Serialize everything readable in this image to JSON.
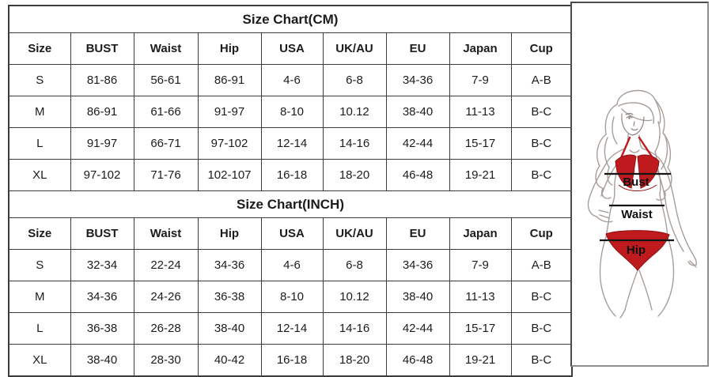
{
  "tables": [
    {
      "title": "Size Chart(CM)",
      "columns": [
        "Size",
        "BUST",
        "Waist",
        "Hip",
        "USA",
        "UK/AU",
        "EU",
        "Japan",
        "Cup"
      ],
      "rows": [
        [
          "S",
          "81-86",
          "56-61",
          "86-91",
          "4-6",
          "6-8",
          "34-36",
          "7-9",
          "A-B"
        ],
        [
          "M",
          "86-91",
          "61-66",
          "91-97",
          "8-10",
          "10.12",
          "38-40",
          "11-13",
          "B-C"
        ],
        [
          "L",
          "91-97",
          "66-71",
          "97-102",
          "12-14",
          "14-16",
          "42-44",
          "15-17",
          "B-C"
        ],
        [
          "XL",
          "97-102",
          "71-76",
          "102-107",
          "16-18",
          "18-20",
          "46-48",
          "19-21",
          "B-C"
        ]
      ]
    },
    {
      "title": "Size Chart(INCH)",
      "columns": [
        "Size",
        "BUST",
        "Waist",
        "Hip",
        "USA",
        "UK/AU",
        "EU",
        "Japan",
        "Cup"
      ],
      "rows": [
        [
          "S",
          "32-34",
          "22-24",
          "34-36",
          "4-6",
          "6-8",
          "34-36",
          "7-9",
          "A-B"
        ],
        [
          "M",
          "34-36",
          "24-26",
          "36-38",
          "8-10",
          "10.12",
          "38-40",
          "11-13",
          "B-C"
        ],
        [
          "L",
          "36-38",
          "26-28",
          "38-40",
          "12-14",
          "14-16",
          "42-44",
          "15-17",
          "B-C"
        ],
        [
          "XL",
          "38-40",
          "28-30",
          "40-42",
          "16-18",
          "18-20",
          "46-48",
          "19-21",
          "B-C"
        ]
      ]
    }
  ],
  "figure": {
    "labels": {
      "bust": "Bust",
      "waist": "Waist",
      "hip": "Hip"
    },
    "colors": {
      "bikini_red": "#bf1b1e"
    }
  }
}
